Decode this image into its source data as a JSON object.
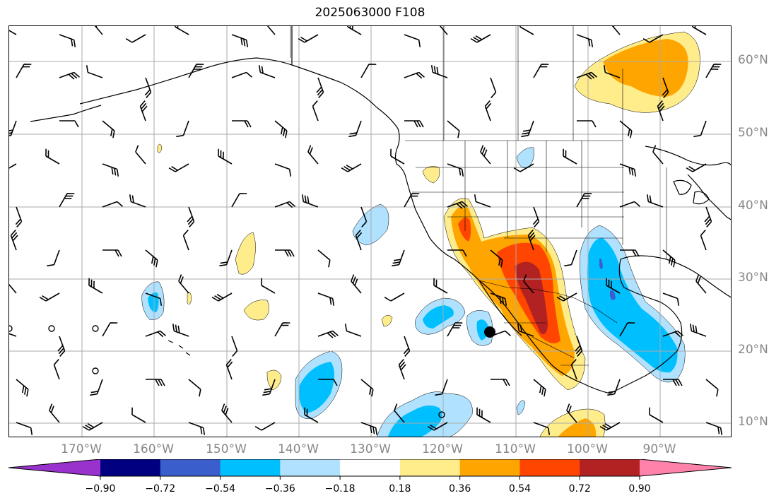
{
  "title": "2025063000 F108",
  "grid": {
    "lat_labels": [
      "60°N",
      "50°N",
      "40°N",
      "30°N",
      "20°N",
      "10°N"
    ],
    "lon_labels": [
      "170°W",
      "160°W",
      "150°W",
      "140°W",
      "130°W",
      "120°W",
      "110°W",
      "100°W",
      "90°W"
    ]
  },
  "colorbar": {
    "ticks": [
      "−0.90",
      "−0.72",
      "−0.54",
      "−0.36",
      "−0.18",
      "0.18",
      "0.36",
      "0.54",
      "0.72",
      "0.90"
    ],
    "colors": [
      "#9932cc",
      "#000080",
      "#3a5fcd",
      "#00bfff",
      "#b0e2ff",
      "#ffffff",
      "#ffec8b",
      "#ffa500",
      "#ff4500",
      "#b22222",
      "#ff82ab"
    ]
  },
  "colors": {
    "fill_pos_1": "#ffec8b",
    "fill_pos_2": "#ffa500",
    "fill_pos_3": "#ff4500",
    "fill_pos_4": "#b22222",
    "fill_neg_1": "#b0e2ff",
    "fill_neg_2": "#00bfff",
    "fill_neg_3": "#3a5fcd",
    "fill_neg_4": "#9932cc",
    "grid": "#aaaaaa",
    "coast": "#000000"
  }
}
